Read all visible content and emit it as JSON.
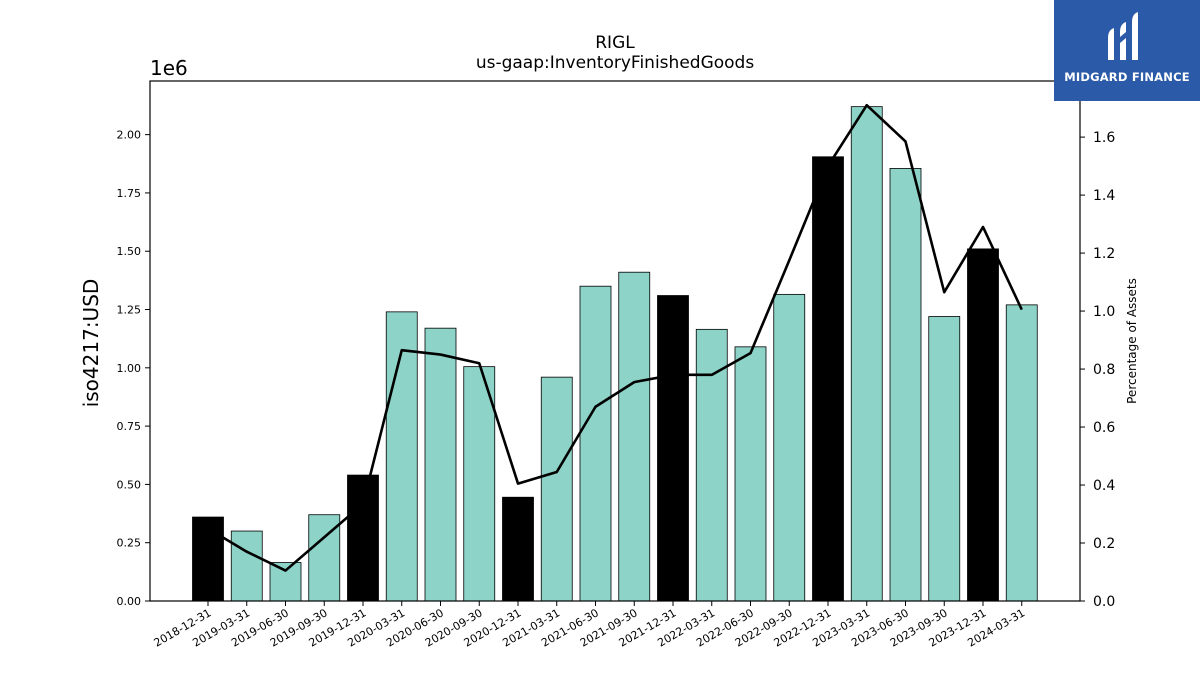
{
  "chart_data": {
    "type": "bar",
    "title": "RIGL",
    "subtitle": "us-gaap:InventoryFinishedGoods",
    "ylabel": "iso4217:USD",
    "y_offset_label": "1e6",
    "y2label": "Percentage of Assets",
    "ylim": [
      0,
      2.23
    ],
    "y2lim": [
      0,
      1.7935
    ],
    "y_ticks": [
      "0.00",
      "0.25",
      "0.50",
      "0.75",
      "1.00",
      "1.25",
      "1.50",
      "1.75",
      "2.00"
    ],
    "y2_ticks": [
      "0.0",
      "0.2",
      "0.4",
      "0.6",
      "0.8",
      "1.0",
      "1.2",
      "1.4",
      "1.6"
    ],
    "categories": [
      "2018-12-31",
      "2019-03-31",
      "2019-06-30",
      "2019-09-30",
      "2019-12-31",
      "2020-03-31",
      "2020-06-30",
      "2020-09-30",
      "2020-12-31",
      "2021-03-31",
      "2021-06-30",
      "2021-09-30",
      "2021-12-31",
      "2022-03-31",
      "2022-06-30",
      "2022-09-30",
      "2022-12-31",
      "2023-03-31",
      "2023-06-30",
      "2023-09-30",
      "2023-12-31",
      "2024-03-31"
    ],
    "series": [
      {
        "type": "bar",
        "values": [
          0.36,
          0.3,
          0.165,
          0.37,
          0.54,
          1.24,
          1.17,
          1.005,
          0.445,
          0.96,
          1.35,
          1.41,
          1.31,
          1.165,
          1.09,
          1.315,
          1.905,
          2.12,
          1.855,
          1.22,
          1.51,
          1.27
        ],
        "highlight": [
          true,
          false,
          false,
          false,
          true,
          false,
          false,
          false,
          true,
          false,
          false,
          false,
          true,
          false,
          false,
          false,
          true,
          false,
          false,
          false,
          true,
          false
        ]
      },
      {
        "type": "line",
        "axis": "right",
        "values": [
          0.25,
          0.17,
          0.105,
          0.22,
          0.335,
          0.865,
          0.85,
          0.82,
          0.405,
          0.445,
          0.67,
          0.755,
          0.78,
          0.78,
          0.855,
          1.175,
          1.5,
          1.71,
          1.585,
          1.065,
          1.29,
          1.005
        ]
      }
    ],
    "colors": {
      "bar": "#8dd3c7",
      "highlight": "#000000",
      "line": "#000000"
    },
    "grid": false
  },
  "logo": {
    "text": "MIDGARD FINANCE"
  }
}
